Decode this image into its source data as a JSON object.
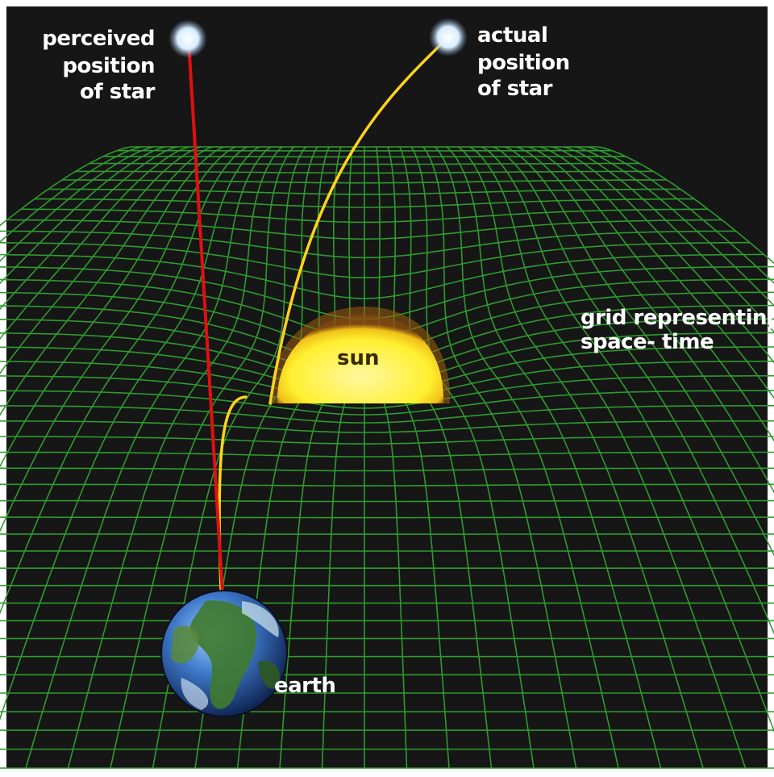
{
  "labels": {
    "perceived": [
      "perceived",
      "position",
      "of star"
    ],
    "actual": [
      "actual",
      "position",
      "of star"
    ],
    "grid": [
      "grid representing",
      "space- time"
    ],
    "sun": "sun",
    "earth": "earth"
  },
  "colors": {
    "background": "#161616",
    "grid": "#2f9a2f",
    "sun": "#fff030",
    "perceived_ray": "#e01010",
    "actual_ray": "#ffd21e",
    "star": "#d8ecff"
  }
}
